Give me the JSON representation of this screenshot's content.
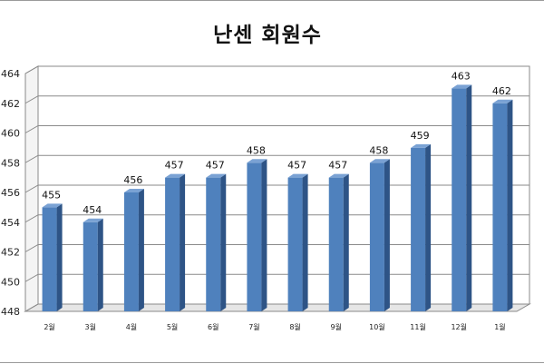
{
  "chart_data": {
    "type": "bar",
    "title": "난센 회원수",
    "xlabel": "",
    "ylabel": "",
    "categories": [
      "2월",
      "3월",
      "4월",
      "5월",
      "6월",
      "7월",
      "8월",
      "9월",
      "10월",
      "11월",
      "12월",
      "1월"
    ],
    "values": [
      455,
      454,
      456,
      457,
      457,
      458,
      457,
      457,
      458,
      459,
      463,
      462
    ],
    "ylim": [
      448,
      464
    ],
    "yticks": [
      448,
      450,
      452,
      454,
      456,
      458,
      460,
      462,
      464
    ],
    "ytick_labels": [
      "448",
      "450",
      "452",
      "454",
      "456",
      "458",
      "460",
      "462",
      "464"
    ],
    "grid": true,
    "legend": "none",
    "bar_color": "#4f81bd",
    "bar_side_color": "#2e5486",
    "bar_top_color": "#7aa2d4"
  }
}
